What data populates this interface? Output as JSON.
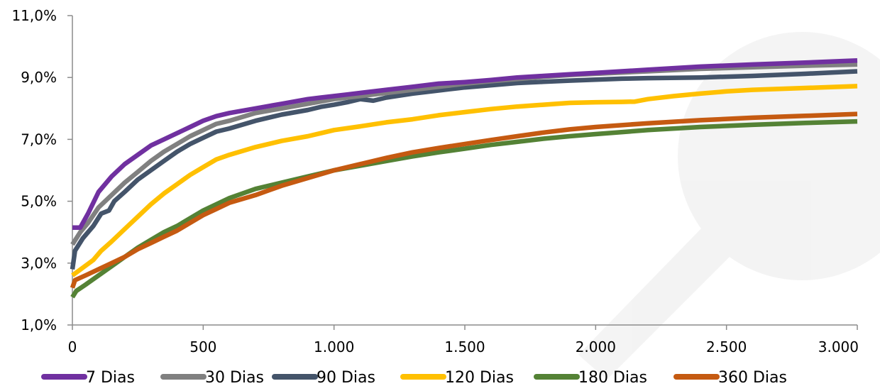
{
  "chart_data": {
    "type": "line",
    "title": "",
    "xlabel": "",
    "ylabel": "",
    "xlim": [
      0,
      3000
    ],
    "ylim": [
      1.0,
      11.0
    ],
    "x_ticks": [
      0,
      500,
      1000,
      1500,
      2000,
      2500,
      3000
    ],
    "x_tick_labels": [
      "0",
      "500",
      "1.000",
      "1.500",
      "2.000",
      "2.500",
      "3.000"
    ],
    "y_ticks": [
      1,
      3,
      5,
      7,
      9,
      11
    ],
    "y_tick_labels": [
      "1,0%",
      "3,0%",
      "5,0%",
      "7,0%",
      "9,0%",
      "11,0%"
    ],
    "grid": false,
    "legend_position": "bottom",
    "series": [
      {
        "name": "7 Dias",
        "color": "#7030A0",
        "points": [
          [
            0,
            4.15
          ],
          [
            30,
            4.15
          ],
          [
            60,
            4.6
          ],
          [
            100,
            5.3
          ],
          [
            150,
            5.8
          ],
          [
            200,
            6.2
          ],
          [
            250,
            6.5
          ],
          [
            300,
            6.8
          ],
          [
            350,
            7.0
          ],
          [
            400,
            7.2
          ],
          [
            450,
            7.4
          ],
          [
            500,
            7.6
          ],
          [
            550,
            7.75
          ],
          [
            600,
            7.85
          ],
          [
            700,
            8.0
          ],
          [
            800,
            8.15
          ],
          [
            900,
            8.3
          ],
          [
            950,
            8.35
          ],
          [
            1000,
            8.4
          ],
          [
            1050,
            8.45
          ],
          [
            1100,
            8.5
          ],
          [
            1200,
            8.6
          ],
          [
            1300,
            8.7
          ],
          [
            1400,
            8.8
          ],
          [
            1500,
            8.85
          ],
          [
            1600,
            8.92
          ],
          [
            1700,
            9.0
          ],
          [
            1800,
            9.05
          ],
          [
            1900,
            9.1
          ],
          [
            2000,
            9.15
          ],
          [
            2200,
            9.25
          ],
          [
            2400,
            9.35
          ],
          [
            2600,
            9.42
          ],
          [
            2800,
            9.48
          ],
          [
            3000,
            9.55
          ]
        ]
      },
      {
        "name": "30 Dias",
        "color": "#808080",
        "points": [
          [
            0,
            3.6
          ],
          [
            30,
            4.0
          ],
          [
            60,
            4.3
          ],
          [
            100,
            4.8
          ],
          [
            150,
            5.2
          ],
          [
            200,
            5.6
          ],
          [
            250,
            5.95
          ],
          [
            300,
            6.3
          ],
          [
            350,
            6.6
          ],
          [
            400,
            6.85
          ],
          [
            450,
            7.1
          ],
          [
            500,
            7.3
          ],
          [
            550,
            7.5
          ],
          [
            600,
            7.6
          ],
          [
            700,
            7.85
          ],
          [
            800,
            8.0
          ],
          [
            900,
            8.15
          ],
          [
            1000,
            8.3
          ],
          [
            1100,
            8.4
          ],
          [
            1200,
            8.5
          ],
          [
            1300,
            8.6
          ],
          [
            1400,
            8.7
          ],
          [
            1500,
            8.8
          ],
          [
            1600,
            8.88
          ],
          [
            1700,
            8.95
          ],
          [
            1800,
            9.02
          ],
          [
            1900,
            9.08
          ],
          [
            2000,
            9.12
          ],
          [
            2200,
            9.2
          ],
          [
            2400,
            9.28
          ],
          [
            2600,
            9.33
          ],
          [
            2800,
            9.38
          ],
          [
            3000,
            9.42
          ]
        ]
      },
      {
        "name": "90 Dias",
        "color": "#44546A",
        "points": [
          [
            0,
            2.8
          ],
          [
            10,
            3.4
          ],
          [
            40,
            3.8
          ],
          [
            80,
            4.2
          ],
          [
            110,
            4.6
          ],
          [
            140,
            4.7
          ],
          [
            160,
            5.0
          ],
          [
            200,
            5.3
          ],
          [
            250,
            5.7
          ],
          [
            300,
            6.0
          ],
          [
            350,
            6.3
          ],
          [
            400,
            6.6
          ],
          [
            450,
            6.85
          ],
          [
            500,
            7.05
          ],
          [
            550,
            7.25
          ],
          [
            600,
            7.35
          ],
          [
            700,
            7.6
          ],
          [
            800,
            7.8
          ],
          [
            900,
            7.95
          ],
          [
            950,
            8.05
          ],
          [
            1000,
            8.12
          ],
          [
            1050,
            8.2
          ],
          [
            1100,
            8.3
          ],
          [
            1150,
            8.25
          ],
          [
            1200,
            8.35
          ],
          [
            1300,
            8.48
          ],
          [
            1400,
            8.58
          ],
          [
            1500,
            8.68
          ],
          [
            1600,
            8.75
          ],
          [
            1700,
            8.82
          ],
          [
            1800,
            8.86
          ],
          [
            1900,
            8.9
          ],
          [
            2000,
            8.93
          ],
          [
            2100,
            8.96
          ],
          [
            2200,
            8.98
          ],
          [
            2400,
            9.0
          ],
          [
            2600,
            9.05
          ],
          [
            2800,
            9.12
          ],
          [
            3000,
            9.2
          ]
        ]
      },
      {
        "name": "120 Dias",
        "color": "#FFC000",
        "points": [
          [
            0,
            2.6
          ],
          [
            40,
            2.85
          ],
          [
            80,
            3.1
          ],
          [
            110,
            3.4
          ],
          [
            150,
            3.7
          ],
          [
            200,
            4.1
          ],
          [
            250,
            4.5
          ],
          [
            300,
            4.9
          ],
          [
            350,
            5.25
          ],
          [
            400,
            5.55
          ],
          [
            450,
            5.85
          ],
          [
            500,
            6.1
          ],
          [
            550,
            6.35
          ],
          [
            600,
            6.5
          ],
          [
            700,
            6.75
          ],
          [
            800,
            6.95
          ],
          [
            900,
            7.1
          ],
          [
            950,
            7.2
          ],
          [
            1000,
            7.3
          ],
          [
            1100,
            7.42
          ],
          [
            1200,
            7.55
          ],
          [
            1300,
            7.65
          ],
          [
            1400,
            7.78
          ],
          [
            1500,
            7.88
          ],
          [
            1600,
            7.98
          ],
          [
            1700,
            8.06
          ],
          [
            1800,
            8.12
          ],
          [
            1900,
            8.18
          ],
          [
            2000,
            8.2
          ],
          [
            2100,
            8.21
          ],
          [
            2150,
            8.22
          ],
          [
            2200,
            8.3
          ],
          [
            2300,
            8.4
          ],
          [
            2400,
            8.48
          ],
          [
            2500,
            8.55
          ],
          [
            2600,
            8.6
          ],
          [
            2800,
            8.66
          ],
          [
            3000,
            8.72
          ]
        ]
      },
      {
        "name": "180 Dias",
        "color": "#548235",
        "points": [
          [
            0,
            1.9
          ],
          [
            15,
            2.1
          ],
          [
            50,
            2.3
          ],
          [
            100,
            2.6
          ],
          [
            150,
            2.9
          ],
          [
            200,
            3.2
          ],
          [
            250,
            3.5
          ],
          [
            300,
            3.75
          ],
          [
            350,
            4.0
          ],
          [
            400,
            4.2
          ],
          [
            450,
            4.45
          ],
          [
            500,
            4.7
          ],
          [
            550,
            4.9
          ],
          [
            600,
            5.1
          ],
          [
            700,
            5.4
          ],
          [
            800,
            5.6
          ],
          [
            900,
            5.8
          ],
          [
            1000,
            6.0
          ],
          [
            1100,
            6.15
          ],
          [
            1200,
            6.3
          ],
          [
            1300,
            6.45
          ],
          [
            1400,
            6.58
          ],
          [
            1500,
            6.7
          ],
          [
            1600,
            6.82
          ],
          [
            1700,
            6.92
          ],
          [
            1800,
            7.02
          ],
          [
            1900,
            7.1
          ],
          [
            2000,
            7.17
          ],
          [
            2200,
            7.3
          ],
          [
            2400,
            7.4
          ],
          [
            2600,
            7.47
          ],
          [
            2800,
            7.53
          ],
          [
            3000,
            7.58
          ]
        ]
      },
      {
        "name": "360 Dias",
        "color": "#C55A11",
        "points": [
          [
            0,
            2.2
          ],
          [
            10,
            2.45
          ],
          [
            50,
            2.6
          ],
          [
            100,
            2.8
          ],
          [
            150,
            3.0
          ],
          [
            200,
            3.2
          ],
          [
            250,
            3.45
          ],
          [
            300,
            3.65
          ],
          [
            350,
            3.85
          ],
          [
            400,
            4.05
          ],
          [
            450,
            4.3
          ],
          [
            500,
            4.55
          ],
          [
            550,
            4.75
          ],
          [
            600,
            4.95
          ],
          [
            700,
            5.2
          ],
          [
            800,
            5.5
          ],
          [
            900,
            5.75
          ],
          [
            1000,
            6.0
          ],
          [
            1100,
            6.2
          ],
          [
            1200,
            6.4
          ],
          [
            1300,
            6.58
          ],
          [
            1400,
            6.72
          ],
          [
            1500,
            6.85
          ],
          [
            1600,
            6.98
          ],
          [
            1700,
            7.1
          ],
          [
            1800,
            7.22
          ],
          [
            1900,
            7.32
          ],
          [
            2000,
            7.4
          ],
          [
            2200,
            7.52
          ],
          [
            2400,
            7.62
          ],
          [
            2600,
            7.7
          ],
          [
            2800,
            7.76
          ],
          [
            3000,
            7.82
          ]
        ]
      }
    ]
  }
}
